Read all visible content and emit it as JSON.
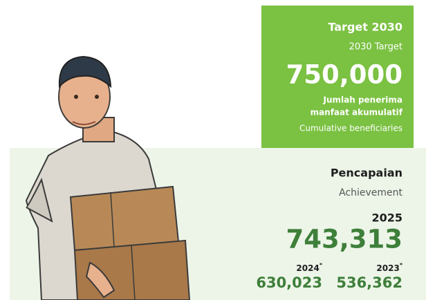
{
  "target": {
    "title": "Target 2030",
    "subtitle": "2030 Target",
    "value": "750,000",
    "label_lines": [
      "Jumlah penerima",
      "manfaat akumulatif"
    ],
    "label_en": "Cumulative beneficiaries"
  },
  "achievement": {
    "title": "Pencapaian",
    "subtitle": "Achievement",
    "current": {
      "year": "2025",
      "value": "743,313"
    },
    "previous": [
      {
        "year": "2024",
        "marker": "*",
        "value": "630,023"
      },
      {
        "year": "2023",
        "marker": "*",
        "value": "536,362"
      }
    ]
  }
}
